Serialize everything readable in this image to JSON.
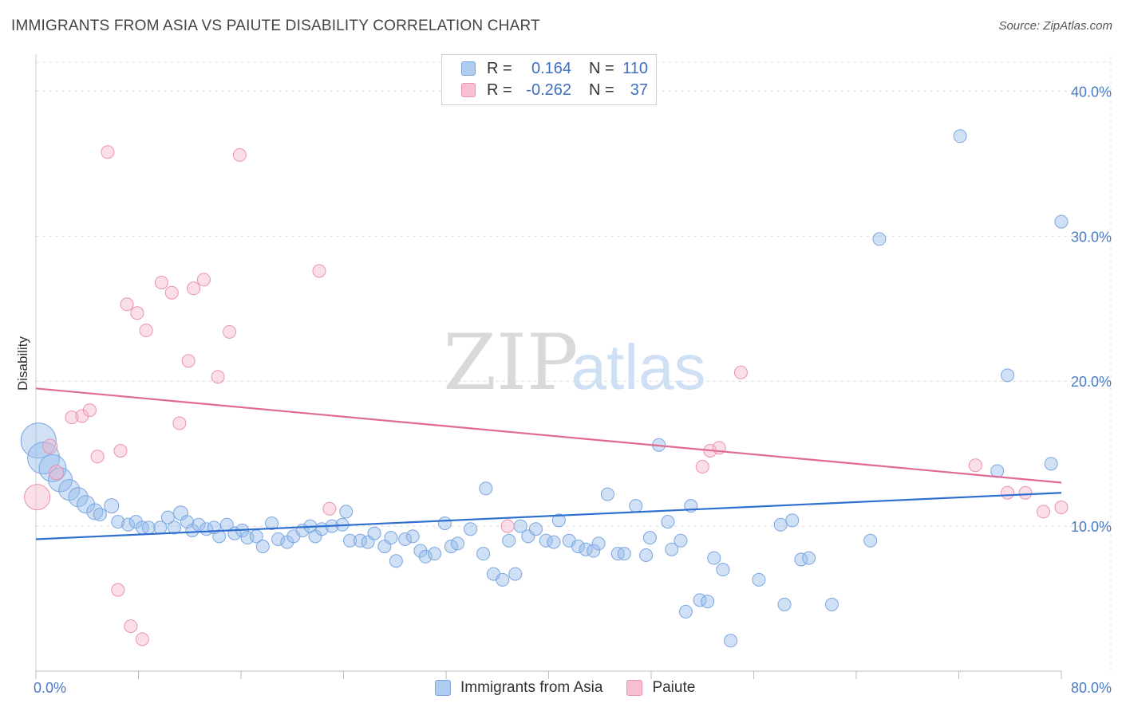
{
  "title": "IMMIGRANTS FROM ASIA VS PAIUTE DISABILITY CORRELATION CHART",
  "source": "Source: ZipAtlas.com",
  "watermark": {
    "zip": "ZIP",
    "atlas": "atlas"
  },
  "legend": {
    "rows": [
      {
        "r_label": "R =",
        "r_value": "0.164",
        "n_label": "N =",
        "n_value": "110",
        "color": "#aecbf0",
        "border": "#7aa6e0"
      },
      {
        "r_label": "R =",
        "r_value": "-0.262",
        "n_label": "N =",
        "n_value": "37",
        "color": "#f7bfd0",
        "border": "#ea93ad"
      }
    ]
  },
  "bottom_legend": [
    {
      "label": "Immigrants from Asia",
      "color": "#aecbf0",
      "border": "#7aa6e0"
    },
    {
      "label": "Paiute",
      "color": "#f7bfd0",
      "border": "#ea93ad"
    }
  ],
  "chart_data": {
    "type": "scatter",
    "xlabel": "",
    "ylabel": "Disability",
    "xlim": [
      0,
      80
    ],
    "ylim": [
      0,
      42
    ],
    "x_tick_labels": [
      "0.0%",
      "80.0%"
    ],
    "y_ticks": [
      10,
      20,
      30,
      40
    ],
    "y_tick_labels": [
      "10.0%",
      "20.0%",
      "30.0%",
      "40.0%"
    ],
    "grid": true,
    "colors": {
      "blue": "#7aa6e0",
      "blue_fill": "rgba(150,188,236,0.45)",
      "blue_line": "#2e6fcf",
      "pink": "#ea93ad",
      "pink_fill": "rgba(247,185,205,0.45)",
      "pink_line": "#e06a93"
    },
    "series": [
      {
        "name": "Immigrants from Asia",
        "trend": [
          [
            0,
            9.1
          ],
          [
            80,
            12.3
          ]
        ],
        "points": [
          [
            0.2,
            15.9,
            2.2
          ],
          [
            0.6,
            14.7,
            2.0
          ],
          [
            1.3,
            14.0,
            1.7
          ],
          [
            1.9,
            13.2,
            1.5
          ],
          [
            2.6,
            12.5,
            1.3
          ],
          [
            3.3,
            12.0,
            1.2
          ],
          [
            3.9,
            11.5,
            1.1
          ],
          [
            4.6,
            11.0,
            1.0
          ],
          [
            5.9,
            11.4,
            0.9
          ],
          [
            5.0,
            10.8,
            0.8
          ],
          [
            6.4,
            10.3,
            0.8
          ],
          [
            7.2,
            10.1,
            0.8
          ],
          [
            7.8,
            10.3,
            0.8
          ],
          [
            8.3,
            9.9,
            0.8
          ],
          [
            8.8,
            9.9,
            0.8
          ],
          [
            9.7,
            9.9,
            0.8
          ],
          [
            10.3,
            10.6,
            0.8
          ],
          [
            10.8,
            9.9,
            0.8
          ],
          [
            11.3,
            10.9,
            0.9
          ],
          [
            11.8,
            10.3,
            0.8
          ],
          [
            12.2,
            9.7,
            0.8
          ],
          [
            12.7,
            10.1,
            0.8
          ],
          [
            13.3,
            9.8,
            0.8
          ],
          [
            13.9,
            9.9,
            0.8
          ],
          [
            14.3,
            9.3,
            0.8
          ],
          [
            14.9,
            10.1,
            0.8
          ],
          [
            15.5,
            9.5,
            0.8
          ],
          [
            16.1,
            9.7,
            0.8
          ],
          [
            16.5,
            9.2,
            0.8
          ],
          [
            17.2,
            9.3,
            0.8
          ],
          [
            17.7,
            8.6,
            0.8
          ],
          [
            18.4,
            10.2,
            0.8
          ],
          [
            18.9,
            9.1,
            0.8
          ],
          [
            19.6,
            8.9,
            0.8
          ],
          [
            20.1,
            9.3,
            0.8
          ],
          [
            20.8,
            9.7,
            0.8
          ],
          [
            21.4,
            10.0,
            0.8
          ],
          [
            21.8,
            9.3,
            0.8
          ],
          [
            22.3,
            9.8,
            0.8
          ],
          [
            23.1,
            10.0,
            0.8
          ],
          [
            23.9,
            10.1,
            0.8
          ],
          [
            24.2,
            11.0,
            0.8
          ],
          [
            24.5,
            9.0,
            0.8
          ],
          [
            25.3,
            9.0,
            0.8
          ],
          [
            25.9,
            8.9,
            0.8
          ],
          [
            26.4,
            9.5,
            0.8
          ],
          [
            27.2,
            8.6,
            0.8
          ],
          [
            27.7,
            9.2,
            0.8
          ],
          [
            28.1,
            7.6,
            0.8
          ],
          [
            28.8,
            9.1,
            0.8
          ],
          [
            29.4,
            9.3,
            0.8
          ],
          [
            30.0,
            8.3,
            0.8
          ],
          [
            30.4,
            7.9,
            0.8
          ],
          [
            31.1,
            8.1,
            0.8
          ],
          [
            31.9,
            10.2,
            0.8
          ],
          [
            32.4,
            8.6,
            0.8
          ],
          [
            32.9,
            8.8,
            0.8
          ],
          [
            33.9,
            9.8,
            0.8
          ],
          [
            34.9,
            8.1,
            0.8
          ],
          [
            35.1,
            12.6,
            0.8
          ],
          [
            35.7,
            6.7,
            0.8
          ],
          [
            36.4,
            6.3,
            0.8
          ],
          [
            36.9,
            9.0,
            0.8
          ],
          [
            37.4,
            6.7,
            0.8
          ],
          [
            37.8,
            10.0,
            0.8
          ],
          [
            38.4,
            9.3,
            0.8
          ],
          [
            39.0,
            9.8,
            0.8
          ],
          [
            39.8,
            9.0,
            0.8
          ],
          [
            40.4,
            8.9,
            0.8
          ],
          [
            40.8,
            10.4,
            0.8
          ],
          [
            41.6,
            9.0,
            0.8
          ],
          [
            42.3,
            8.6,
            0.8
          ],
          [
            42.9,
            8.4,
            0.8
          ],
          [
            43.5,
            8.3,
            0.8
          ],
          [
            43.9,
            8.8,
            0.8
          ],
          [
            44.6,
            12.2,
            0.8
          ],
          [
            45.4,
            8.1,
            0.8
          ],
          [
            45.9,
            8.1,
            0.8
          ],
          [
            46.8,
            11.4,
            0.8
          ],
          [
            47.6,
            8.0,
            0.8
          ],
          [
            47.9,
            9.2,
            0.8
          ],
          [
            48.6,
            15.6,
            0.8
          ],
          [
            49.3,
            10.3,
            0.8
          ],
          [
            49.6,
            8.4,
            0.8
          ],
          [
            50.3,
            9.0,
            0.8
          ],
          [
            50.7,
            4.1,
            0.8
          ],
          [
            51.1,
            11.4,
            0.8
          ],
          [
            51.8,
            4.9,
            0.8
          ],
          [
            52.4,
            4.8,
            0.8
          ],
          [
            52.9,
            7.8,
            0.8
          ],
          [
            53.6,
            7.0,
            0.8
          ],
          [
            54.2,
            2.1,
            0.8
          ],
          [
            56.4,
            6.3,
            0.8
          ],
          [
            58.1,
            10.1,
            0.8
          ],
          [
            58.4,
            4.6,
            0.8
          ],
          [
            59.0,
            10.4,
            0.8
          ],
          [
            59.7,
            7.7,
            0.8
          ],
          [
            60.3,
            7.8,
            0.8
          ],
          [
            62.1,
            4.6,
            0.8
          ],
          [
            65.1,
            9.0,
            0.8
          ],
          [
            65.8,
            29.8,
            0.8
          ],
          [
            72.1,
            36.9,
            0.8
          ],
          [
            75.0,
            13.8,
            0.8
          ],
          [
            75.8,
            20.4,
            0.8
          ],
          [
            79.2,
            14.3,
            0.8
          ],
          [
            80.0,
            31.0,
            0.8
          ]
        ]
      },
      {
        "name": "Paiute",
        "trend": [
          [
            0,
            19.5
          ],
          [
            80,
            13.0
          ]
        ],
        "points": [
          [
            0.1,
            12.0,
            1.6
          ],
          [
            1.1,
            15.5,
            0.9
          ],
          [
            1.6,
            13.7,
            0.9
          ],
          [
            2.8,
            17.5,
            0.8
          ],
          [
            3.6,
            17.6,
            0.8
          ],
          [
            4.2,
            18.0,
            0.8
          ],
          [
            4.8,
            14.8,
            0.8
          ],
          [
            5.6,
            35.8,
            0.8
          ],
          [
            6.6,
            15.2,
            0.8
          ],
          [
            7.1,
            25.3,
            0.8
          ],
          [
            7.9,
            24.7,
            0.8
          ],
          [
            8.6,
            23.5,
            0.8
          ],
          [
            6.4,
            5.6,
            0.8
          ],
          [
            7.4,
            3.1,
            0.8
          ],
          [
            8.3,
            2.2,
            0.8
          ],
          [
            9.8,
            26.8,
            0.8
          ],
          [
            10.6,
            26.1,
            0.8
          ],
          [
            11.2,
            17.1,
            0.8
          ],
          [
            11.9,
            21.4,
            0.8
          ],
          [
            12.3,
            26.4,
            0.8
          ],
          [
            13.1,
            27.0,
            0.8
          ],
          [
            14.2,
            20.3,
            0.8
          ],
          [
            15.1,
            23.4,
            0.8
          ],
          [
            15.9,
            35.6,
            0.8
          ],
          [
            22.1,
            27.6,
            0.8
          ],
          [
            22.9,
            11.2,
            0.8
          ],
          [
            36.8,
            10.0,
            0.8
          ],
          [
            52.0,
            14.1,
            0.8
          ],
          [
            52.6,
            15.2,
            0.8
          ],
          [
            53.3,
            15.4,
            0.8
          ],
          [
            55.0,
            20.6,
            0.8
          ],
          [
            73.3,
            14.2,
            0.8
          ],
          [
            75.8,
            12.3,
            0.8
          ],
          [
            77.2,
            12.3,
            0.8
          ],
          [
            78.6,
            11.0,
            0.8
          ],
          [
            80.0,
            11.3,
            0.8
          ]
        ]
      }
    ]
  }
}
